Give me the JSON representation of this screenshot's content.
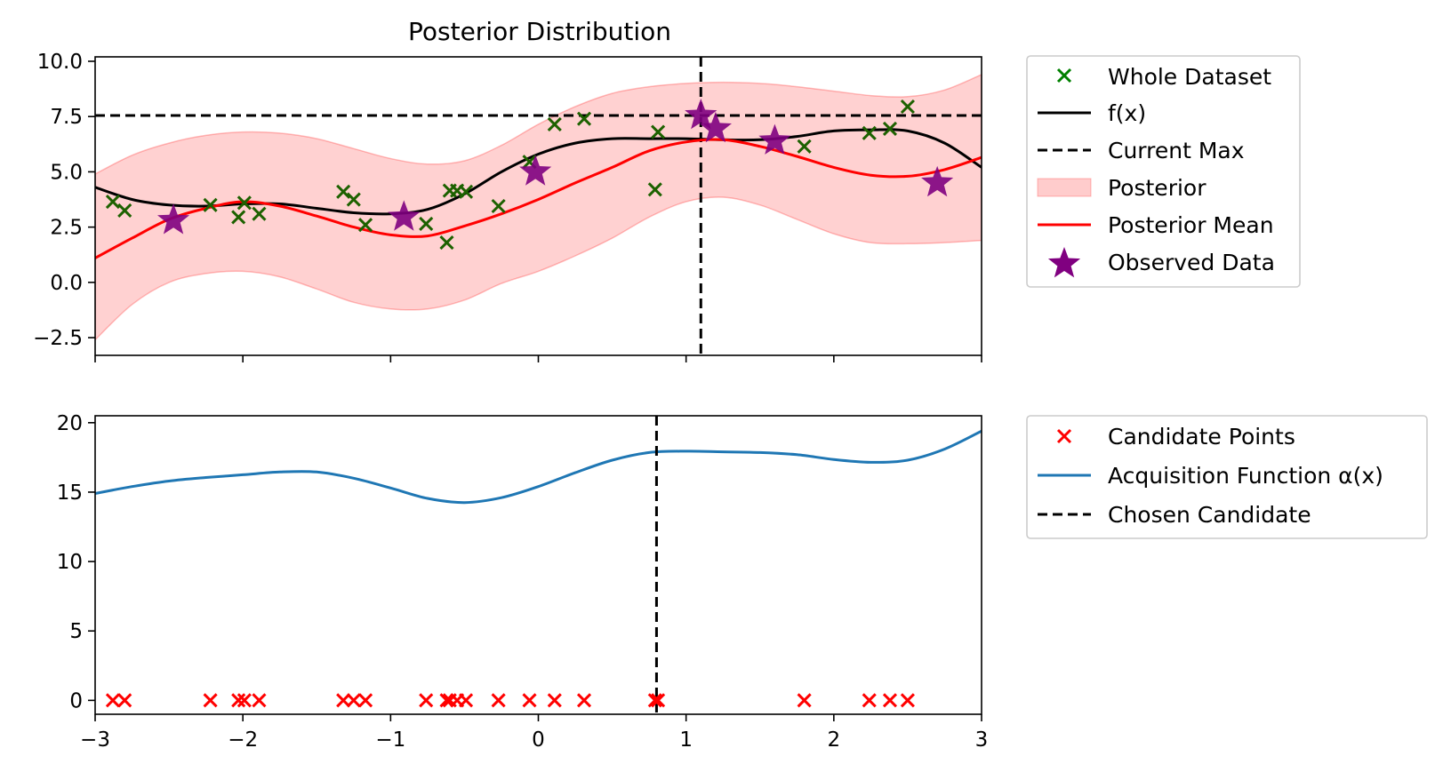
{
  "colors": {
    "whole_dataset": "#008000",
    "f_line": "#000000",
    "current_max": "#000000",
    "posterior_band": "#ff9999",
    "posterior_mean": "#ff0000",
    "observed": "#800080",
    "candidate": "#ff0000",
    "acquisition": "#1f77b4",
    "chosen": "#000000"
  },
  "chart_data": [
    {
      "type": "line",
      "title": "Posterior Distribution",
      "xlim": [
        -3,
        3
      ],
      "ylim": [
        -3.3,
        10.2
      ],
      "xticks": [
        -3,
        -2,
        -1,
        0,
        1,
        2,
        3
      ],
      "yticks": [
        -2.5,
        0.0,
        2.5,
        5.0,
        7.5,
        10.0
      ],
      "ytick_labels": [
        "−2.5",
        "0.0",
        "2.5",
        "5.0",
        "7.5",
        "10.0"
      ],
      "show_xtick_labels": false,
      "grid": false,
      "legend_position": "outside-right",
      "legend": [
        "Whole Dataset",
        "f(x)",
        "Current Max",
        "Posterior",
        "Posterior Mean",
        "Observed Data"
      ],
      "current_max_y": 7.55,
      "current_max_x": 1.1,
      "x": [
        -3.0,
        -2.75,
        -2.5,
        -2.25,
        -2.0,
        -1.75,
        -1.5,
        -1.25,
        -1.0,
        -0.75,
        -0.5,
        -0.25,
        0.0,
        0.25,
        0.5,
        0.75,
        1.0,
        1.25,
        1.5,
        1.75,
        2.0,
        2.25,
        2.5,
        2.75,
        3.0
      ],
      "series": [
        {
          "name": "f(x)",
          "values": [
            4.3,
            3.75,
            3.5,
            3.45,
            3.55,
            3.55,
            3.35,
            3.15,
            3.1,
            3.3,
            4.0,
            5.0,
            5.8,
            6.3,
            6.5,
            6.5,
            6.5,
            6.45,
            6.45,
            6.6,
            6.85,
            6.9,
            6.85,
            6.3,
            5.2
          ]
        },
        {
          "name": "Posterior Mean",
          "values": [
            1.1,
            2.0,
            2.85,
            3.35,
            3.65,
            3.45,
            3.0,
            2.5,
            2.15,
            2.1,
            2.55,
            3.1,
            3.75,
            4.5,
            5.2,
            5.95,
            6.35,
            6.45,
            6.15,
            5.7,
            5.2,
            4.85,
            4.8,
            5.1,
            5.65
          ]
        },
        {
          "name": "Posterior",
          "upper": [
            4.9,
            5.75,
            6.3,
            6.65,
            6.8,
            6.75,
            6.5,
            6.05,
            5.6,
            5.35,
            5.5,
            6.2,
            7.15,
            7.95,
            8.55,
            8.85,
            9.0,
            9.05,
            9.0,
            8.85,
            8.65,
            8.45,
            8.4,
            8.7,
            9.4
          ],
          "lower": [
            -2.6,
            -1.0,
            0.0,
            0.4,
            0.5,
            0.25,
            -0.3,
            -0.9,
            -1.2,
            -1.2,
            -0.8,
            -0.05,
            0.5,
            1.2,
            2.0,
            2.95,
            3.65,
            3.85,
            3.5,
            2.85,
            2.2,
            1.8,
            1.75,
            1.8,
            1.9
          ]
        }
      ],
      "whole_dataset": {
        "x": [
          -2.88,
          -2.8,
          -2.22,
          -2.03,
          -1.99,
          -1.89,
          -1.32,
          -1.25,
          -1.17,
          -0.76,
          -0.62,
          -0.6,
          -0.55,
          -0.49,
          -0.27,
          -0.06,
          0.11,
          0.31,
          0.79,
          0.81,
          1.8,
          2.24,
          2.38,
          2.5
        ],
        "y": [
          3.65,
          3.25,
          3.5,
          2.95,
          3.6,
          3.1,
          4.1,
          3.75,
          2.6,
          2.65,
          1.8,
          4.15,
          4.15,
          4.1,
          3.45,
          5.45,
          7.15,
          7.4,
          4.2,
          6.8,
          6.15,
          6.75,
          6.95,
          7.95
        ]
      },
      "observed_data": {
        "x": [
          -2.47,
          -0.91,
          -0.02,
          1.1,
          1.2,
          1.6,
          2.7
        ],
        "y": [
          2.8,
          2.95,
          5.0,
          7.55,
          6.95,
          6.4,
          4.5
        ]
      }
    },
    {
      "type": "line",
      "xlim": [
        -3,
        3
      ],
      "ylim": [
        -1,
        20.5
      ],
      "xticks": [
        -3,
        -2,
        -1,
        0,
        1,
        2,
        3
      ],
      "xtick_labels": [
        "−3",
        "−2",
        "−1",
        "0",
        "1",
        "2",
        "3"
      ],
      "yticks": [
        0,
        5,
        10,
        15,
        20
      ],
      "ytick_labels": [
        "0",
        "5",
        "10",
        "15",
        "20"
      ],
      "grid": false,
      "legend_position": "outside-right",
      "legend": [
        "Candidate Points",
        "Acquisition Function α(x)",
        "Chosen Candidate"
      ],
      "chosen_x": 0.8,
      "x": [
        -3.0,
        -2.75,
        -2.5,
        -2.25,
        -2.0,
        -1.75,
        -1.5,
        -1.25,
        -1.0,
        -0.75,
        -0.5,
        -0.25,
        0.0,
        0.25,
        0.5,
        0.75,
        1.0,
        1.25,
        1.5,
        1.75,
        2.0,
        2.25,
        2.5,
        2.75,
        3.0
      ],
      "series": [
        {
          "name": "Acquisition Function α(x)",
          "values": [
            14.9,
            15.4,
            15.8,
            16.05,
            16.25,
            16.45,
            16.45,
            16.0,
            15.3,
            14.55,
            14.25,
            14.6,
            15.4,
            16.4,
            17.3,
            17.85,
            17.95,
            17.9,
            17.85,
            17.7,
            17.35,
            17.15,
            17.3,
            18.1,
            19.4
          ]
        }
      ],
      "candidate_points": {
        "x": [
          -2.88,
          -2.8,
          -2.22,
          -2.03,
          -1.99,
          -1.89,
          -1.32,
          -1.25,
          -1.17,
          -0.76,
          -0.62,
          -0.6,
          -0.55,
          -0.49,
          -0.27,
          -0.06,
          0.11,
          0.31,
          0.79,
          0.81,
          1.8,
          2.24,
          2.38,
          2.5
        ],
        "y": [
          0,
          0,
          0,
          0,
          0,
          0,
          0,
          0,
          0,
          0,
          0,
          0,
          0,
          0,
          0,
          0,
          0,
          0,
          0,
          0,
          0,
          0,
          0,
          0
        ]
      }
    }
  ]
}
